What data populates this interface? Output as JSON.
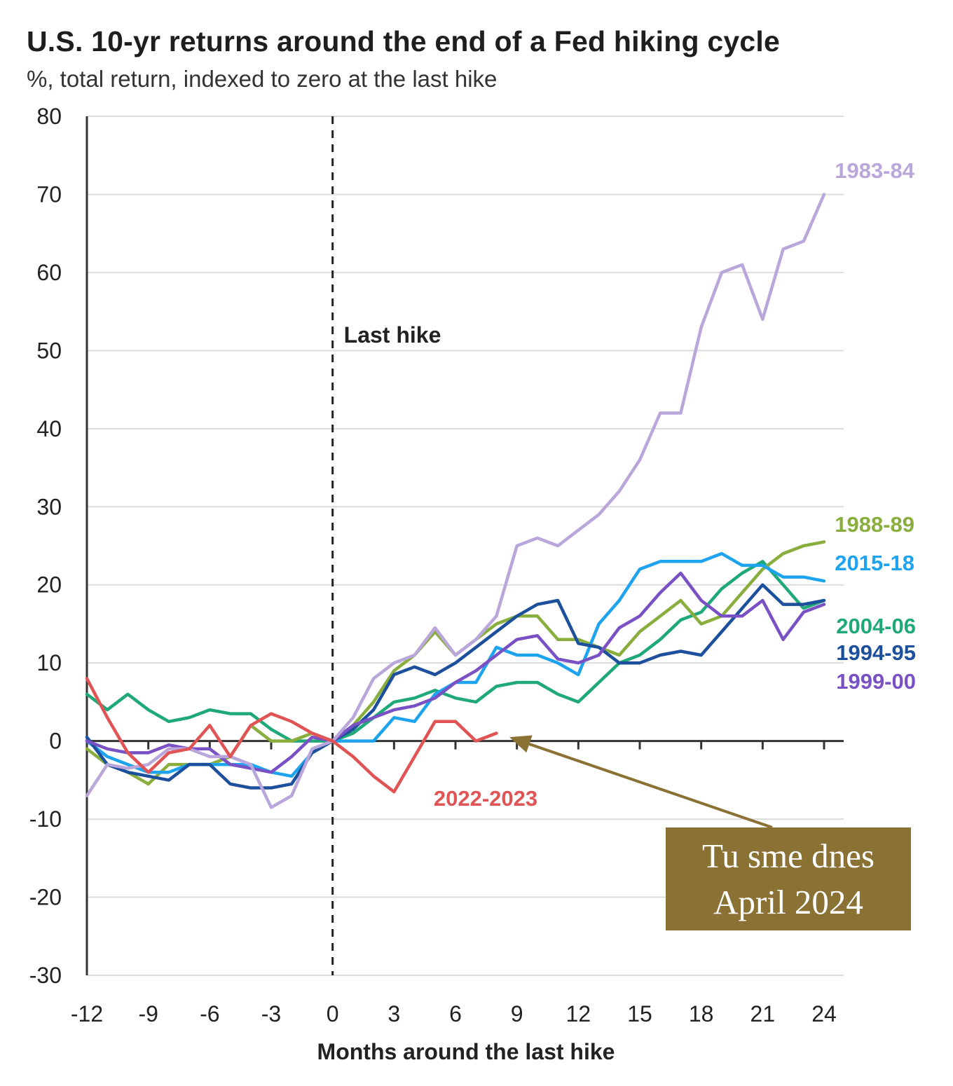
{
  "chart_data": {
    "type": "line",
    "title": "U.S. 10-yr returns around the end of a Fed hiking cycle",
    "subtitle": "%, total return, indexed to zero at the last hike",
    "xlabel": "Months around the last hike",
    "ylabel": "",
    "xlim": [
      -12,
      24
    ],
    "ylim": [
      -30,
      80
    ],
    "x_ticks": [
      -12,
      -9,
      -6,
      -3,
      0,
      3,
      6,
      9,
      12,
      15,
      18,
      21,
      24
    ],
    "y_ticks": [
      80,
      70,
      60,
      50,
      40,
      30,
      20,
      10,
      0,
      -10,
      -20,
      -30
    ],
    "grid": "horizontal",
    "vertical_marker": {
      "x": 0,
      "label": "Last hike",
      "style": "dashed"
    },
    "series": [
      {
        "name": "1983-84",
        "color": "#b9a7dc",
        "x": [
          -12,
          -11,
          -10,
          -9,
          -8,
          -7,
          -6,
          -5,
          -4,
          -3,
          -2,
          -1,
          0,
          1,
          2,
          3,
          4,
          5,
          6,
          7,
          8,
          9,
          10,
          11,
          12,
          13,
          14,
          15,
          16,
          17,
          18,
          19,
          20,
          21,
          22,
          23,
          24
        ],
        "values": [
          -7,
          -3,
          -3.5,
          -3,
          -1,
          -1,
          -2,
          -2,
          -3,
          -8.5,
          -7,
          -1,
          0,
          3,
          8,
          10,
          11,
          14.5,
          11,
          13,
          16,
          25,
          26,
          25,
          27,
          29,
          32,
          36,
          42,
          42,
          53,
          60,
          61,
          54,
          63,
          64,
          70
        ]
      },
      {
        "name": "1988-89",
        "color": "#8aae3e",
        "x": [
          -12,
          -11,
          -10,
          -9,
          -8,
          -7,
          -6,
          -5,
          -4,
          -3,
          -2,
          -1,
          0,
          1,
          2,
          3,
          4,
          5,
          6,
          7,
          8,
          9,
          10,
          11,
          12,
          13,
          14,
          15,
          16,
          17,
          18,
          19,
          20,
          21,
          22,
          23,
          24
        ],
        "values": [
          -1,
          -3,
          -4,
          -5.5,
          -3,
          -3,
          -3,
          -2,
          2,
          0,
          0,
          1,
          0,
          2,
          5,
          9,
          11,
          14,
          11,
          13,
          15,
          16,
          16,
          13,
          13,
          12,
          11,
          14,
          16,
          18,
          15,
          16,
          19,
          22,
          24,
          25,
          25.5
        ]
      },
      {
        "name": "2015-18",
        "color": "#1ea3ee",
        "x": [
          -12,
          -11,
          -10,
          -9,
          -8,
          -7,
          -6,
          -5,
          -4,
          -3,
          -2,
          -1,
          0,
          1,
          2,
          3,
          4,
          5,
          6,
          7,
          8,
          9,
          10,
          11,
          12,
          13,
          14,
          15,
          16,
          17,
          18,
          19,
          20,
          21,
          22,
          23,
          24
        ],
        "values": [
          0,
          -2,
          -3,
          -4,
          -4,
          -3,
          -3,
          -3,
          -3,
          -4,
          -4.5,
          -1.5,
          0,
          0,
          0,
          3,
          2.5,
          6,
          7.5,
          7.5,
          12,
          11,
          11,
          10,
          8.5,
          15,
          18,
          22,
          23,
          23,
          23,
          24,
          22.5,
          22.5,
          21,
          21,
          20.5
        ]
      },
      {
        "name": "2004-06",
        "color": "#1fa878",
        "x": [
          -12,
          -11,
          -10,
          -9,
          -8,
          -7,
          -6,
          -5,
          -4,
          -3,
          -2,
          -1,
          0,
          1,
          2,
          3,
          4,
          5,
          6,
          7,
          8,
          9,
          10,
          11,
          12,
          13,
          14,
          15,
          16,
          17,
          18,
          19,
          20,
          21,
          22,
          23,
          24
        ],
        "values": [
          6,
          4,
          6,
          4,
          2.5,
          3,
          4,
          3.5,
          3.5,
          1.5,
          0,
          0,
          0,
          1,
          3,
          5,
          5.5,
          6.5,
          5.5,
          5,
          7,
          7.5,
          7.5,
          6,
          5,
          7.5,
          10,
          11,
          13,
          15.5,
          16.5,
          19.5,
          21.5,
          23,
          20,
          17,
          18
        ]
      },
      {
        "name": "1994-95",
        "color": "#1c4f9c",
        "x": [
          -12,
          -11,
          -10,
          -9,
          -8,
          -7,
          -6,
          -5,
          -4,
          -3,
          -2,
          -1,
          0,
          1,
          2,
          3,
          4,
          5,
          6,
          7,
          8,
          9,
          10,
          11,
          12,
          13,
          14,
          15,
          16,
          17,
          18,
          19,
          20,
          21,
          22,
          23,
          24
        ],
        "values": [
          0.5,
          -3,
          -4,
          -4.5,
          -5,
          -3,
          -3,
          -5.5,
          -6,
          -6,
          -5.5,
          -1.5,
          0,
          1.5,
          4,
          8.5,
          9.5,
          8.5,
          10,
          12,
          14,
          16,
          17.5,
          18,
          12.5,
          12,
          10,
          10,
          11,
          11.5,
          11,
          14,
          17,
          20,
          17.5,
          17.5,
          18
        ]
      },
      {
        "name": "1999-00",
        "color": "#7a51c4",
        "x": [
          -12,
          -11,
          -10,
          -9,
          -8,
          -7,
          -6,
          -5,
          -4,
          -3,
          -2,
          -1,
          0,
          1,
          2,
          3,
          4,
          5,
          6,
          7,
          8,
          9,
          10,
          11,
          12,
          13,
          14,
          15,
          16,
          17,
          18,
          19,
          20,
          21,
          22,
          23,
          24
        ],
        "values": [
          0,
          -1,
          -1.5,
          -1.5,
          -0.5,
          -1,
          -1,
          -3,
          -3.5,
          -4,
          -2,
          0.5,
          0,
          2,
          3,
          4,
          4.5,
          5.5,
          7.5,
          9,
          11,
          13,
          13.5,
          10.5,
          10,
          11,
          14.5,
          16,
          19,
          21.5,
          18,
          16,
          16,
          18,
          13,
          16.5,
          17.5
        ]
      },
      {
        "name": "2022-2023",
        "color": "#e05456",
        "x": [
          -12,
          -11,
          -10,
          -9,
          -8,
          -7,
          -6,
          -5,
          -4,
          -3,
          -2,
          -1,
          0,
          1,
          2,
          3,
          4,
          5,
          6,
          7,
          8
        ],
        "values": [
          8,
          3,
          -1.5,
          -4,
          -1.5,
          -1,
          2,
          -2,
          2,
          3.5,
          2.5,
          1,
          0,
          -2,
          -4.5,
          -6.5,
          -2,
          2.5,
          2.5,
          0,
          1
        ]
      }
    ],
    "annotation": {
      "lines": [
        "Tu sme dnes",
        "April 2024"
      ],
      "points_to": {
        "x": 8.5,
        "y": 0.5
      },
      "color": "#8a7134"
    }
  }
}
